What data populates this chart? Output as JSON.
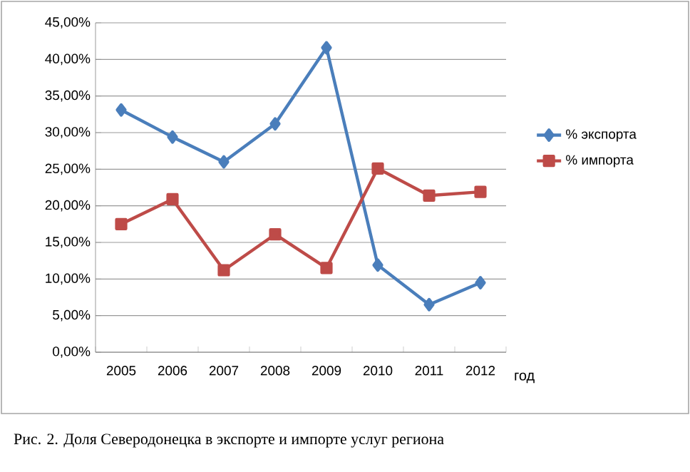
{
  "chart_data": {
    "type": "line",
    "xlabel": "год",
    "categories": [
      "2005",
      "2006",
      "2007",
      "2008",
      "2009",
      "2010",
      "2011",
      "2012"
    ],
    "series": [
      {
        "name": "% экспорта",
        "color": "#4a7ebb",
        "marker": "diamond",
        "values": [
          33.1,
          29.4,
          26.0,
          31.2,
          41.6,
          11.9,
          6.5,
          9.5
        ]
      },
      {
        "name": "% импорта",
        "color": "#be4b48",
        "marker": "square",
        "values": [
          17.5,
          20.9,
          11.2,
          16.1,
          11.5,
          25.1,
          21.4,
          21.9
        ]
      }
    ],
    "ylim": [
      0,
      45
    ],
    "yticks": [
      {
        "value": 0,
        "label": "0,00%"
      },
      {
        "value": 5,
        "label": "5,00%"
      },
      {
        "value": 10,
        "label": "10,00%"
      },
      {
        "value": 15,
        "label": "15,00%"
      },
      {
        "value": 20,
        "label": "20,00%"
      },
      {
        "value": 25,
        "label": "25,00%"
      },
      {
        "value": 30,
        "label": "30,00%"
      },
      {
        "value": 35,
        "label": "35,00%"
      },
      {
        "value": 40,
        "label": "40,00%"
      },
      {
        "value": 45,
        "label": "45,00%"
      }
    ],
    "grid": "y",
    "legend": "right",
    "line_style": "solid",
    "annotations": [
      "Рис. 2. Доля Северодонецка в экспорте и импорте услуг региона"
    ]
  }
}
